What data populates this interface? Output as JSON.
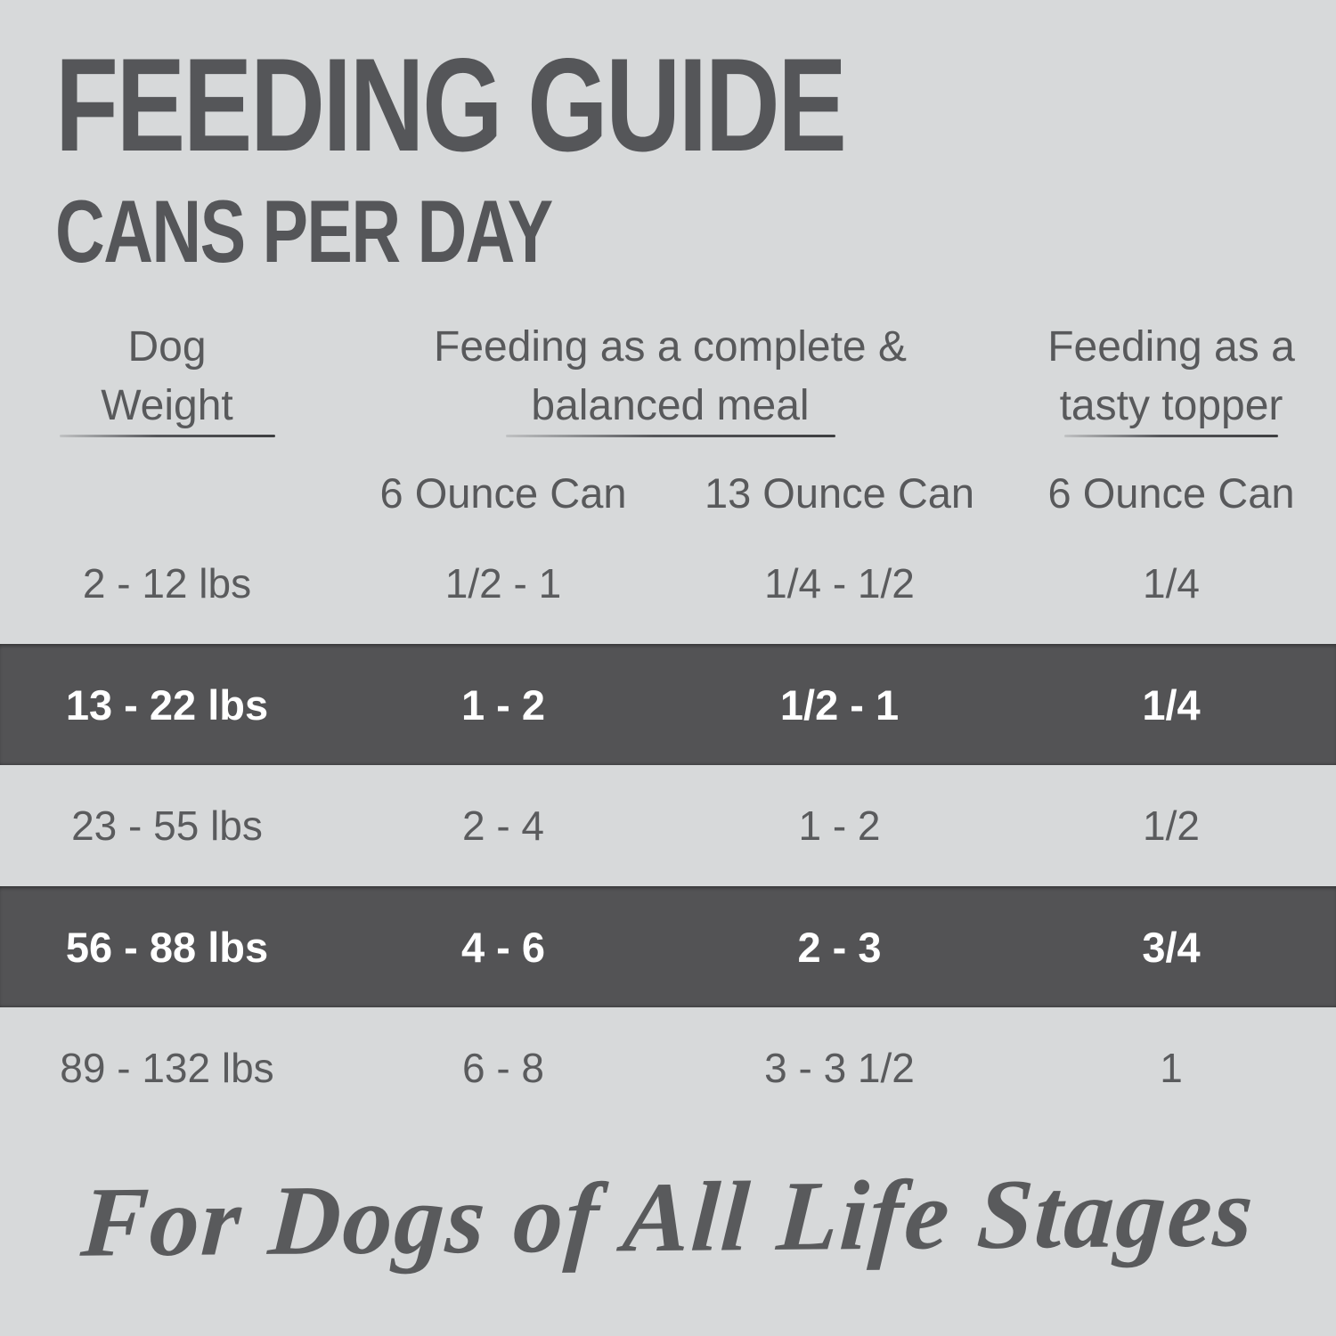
{
  "title": "FEEDING GUIDE",
  "subtitle": "CANS PER DAY",
  "table": {
    "groups": [
      {
        "label": "Dog\nWeight",
        "sub_columns": []
      },
      {
        "label": "Feeding as a complete &\nbalanced meal",
        "sub_columns": [
          "6 Ounce Can",
          "13 Ounce Can"
        ]
      },
      {
        "label": "Feeding as a\ntasty topper",
        "sub_columns": [
          "6 Ounce Can"
        ]
      }
    ],
    "rows": [
      {
        "weight": "2 - 12 lbs",
        "meal_6oz": "1/2 - 1",
        "meal_13oz": "1/4 - 1/2",
        "topper_6oz": "1/4",
        "highlighted": false
      },
      {
        "weight": "13 - 22 lbs",
        "meal_6oz": "1 - 2",
        "meal_13oz": "1/2 - 1",
        "topper_6oz": "1/4",
        "highlighted": true
      },
      {
        "weight": "23 - 55 lbs",
        "meal_6oz": "2 - 4",
        "meal_13oz": "1 - 2",
        "topper_6oz": "1/2",
        "highlighted": false
      },
      {
        "weight": "56 - 88 lbs",
        "meal_6oz": "4 - 6",
        "meal_13oz": "2 - 3",
        "topper_6oz": "3/4",
        "highlighted": true
      },
      {
        "weight": "89 - 132 lbs",
        "meal_6oz": "6 - 8",
        "meal_13oz": "3 - 3 1/2",
        "topper_6oz": "1",
        "highlighted": false
      }
    ]
  },
  "footer": {
    "tagline": "For Dogs of All Life Stages"
  },
  "colors": {
    "background": "#d7d9da",
    "text": "#58595b",
    "highlight_row_background": "#535355",
    "highlight_row_text": "#ffffff"
  }
}
